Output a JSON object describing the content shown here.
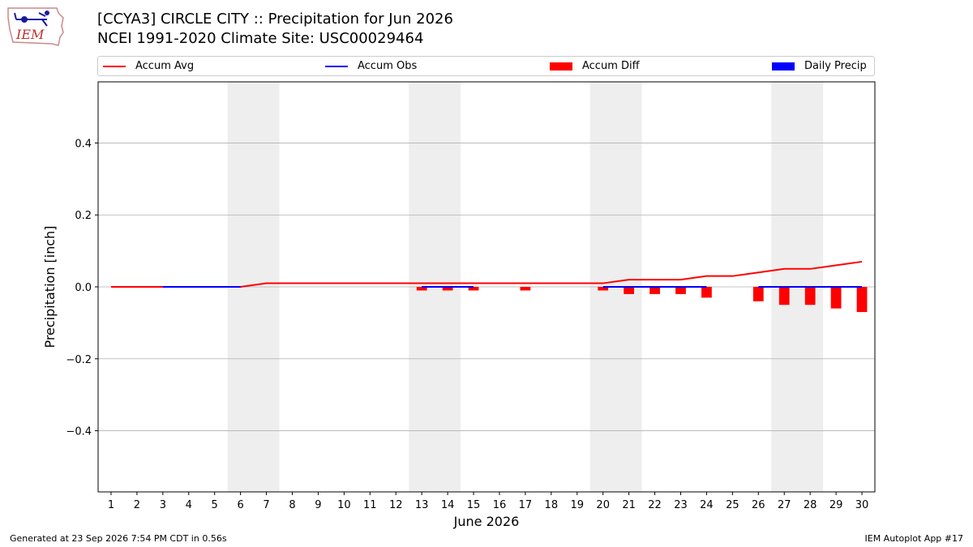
{
  "header": {
    "title_line1": "[CCYA3] CIRCLE CITY :: Precipitation for Jun 2026",
    "title_line2": "NCEI 1991-2020 Climate Site: USC00029464",
    "logo_text": "IEM"
  },
  "legend": {
    "accum_avg": "Accum Avg",
    "accum_obs": "Accum Obs",
    "accum_diff": "Accum Diff",
    "daily_precip": "Daily Precip"
  },
  "colors": {
    "avg": "#ff0000",
    "obs": "#0000ff",
    "diff": "#ff0000",
    "daily": "#0000ff",
    "weekend": "#eeeeee",
    "grid": "#b0b0b0"
  },
  "footer": {
    "generated": "Generated at 23 Sep 2026 7:54 PM CDT in 0.56s",
    "app": "IEM Autoplot App #17"
  },
  "chart_data": {
    "type": "line",
    "xlabel": "June 2026",
    "ylabel": "Precipitation [inch]",
    "ylim": [
      -0.57,
      0.57
    ],
    "yticks": [
      -0.4,
      -0.2,
      0.0,
      0.2,
      0.4
    ],
    "ytick_labels": [
      "−0.4",
      "−0.2",
      "0.0",
      "0.2",
      "0.4"
    ],
    "xlim": [
      0.5,
      30.5
    ],
    "days": [
      1,
      2,
      3,
      4,
      5,
      6,
      7,
      8,
      9,
      10,
      11,
      12,
      13,
      14,
      15,
      16,
      17,
      18,
      19,
      20,
      21,
      22,
      23,
      24,
      25,
      26,
      27,
      28,
      29,
      30
    ],
    "grid": "horizontal",
    "legend_placement": "top",
    "weekend_spans": [
      [
        5.5,
        7.5
      ],
      [
        12.5,
        14.5
      ],
      [
        19.5,
        21.5
      ],
      [
        26.5,
        28.5
      ]
    ],
    "series": [
      {
        "name": "Accum Avg",
        "kind": "line",
        "x": [
          1,
          2,
          3,
          4,
          5,
          6,
          7,
          8,
          9,
          10,
          11,
          12,
          13,
          14,
          15,
          16,
          17,
          18,
          19,
          20,
          21,
          22,
          23,
          24,
          25,
          26,
          27,
          28,
          29,
          30
        ],
        "values": [
          0,
          0,
          0,
          0,
          0,
          0,
          0.01,
          0.01,
          0.01,
          0.01,
          0.01,
          0.01,
          0.01,
          0.01,
          0.01,
          0.01,
          0.01,
          0.01,
          0.01,
          0.01,
          0.02,
          0.02,
          0.02,
          0.03,
          0.03,
          0.04,
          0.05,
          0.05,
          0.06,
          0.07
        ]
      },
      {
        "name": "Accum Obs",
        "kind": "segments",
        "segments": [
          [
            3,
            6
          ],
          [
            13,
            15
          ],
          [
            20,
            24
          ],
          [
            26,
            30
          ]
        ],
        "value": 0.0
      },
      {
        "name": "Accum Diff",
        "kind": "bar",
        "x": [
          13,
          14,
          15,
          17,
          20,
          21,
          22,
          23,
          24,
          26,
          27,
          28,
          29,
          30
        ],
        "values": [
          -0.01,
          -0.01,
          -0.01,
          -0.01,
          -0.01,
          -0.02,
          -0.02,
          -0.02,
          -0.03,
          -0.04,
          -0.05,
          -0.05,
          -0.06,
          -0.07
        ]
      },
      {
        "name": "Daily Precip",
        "kind": "bar",
        "x": [],
        "values": []
      }
    ]
  }
}
